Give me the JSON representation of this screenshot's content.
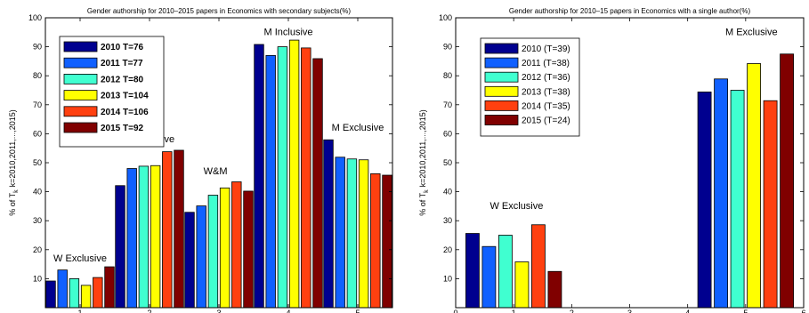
{
  "colors": [
    "#00008f",
    "#1060ff",
    "#40ffd0",
    "#ffff00",
    "#ff4010",
    "#800000"
  ],
  "chart_data": [
    {
      "type": "bar",
      "title": "Gender authorship for 2010–2015 papers in Economics with secondary subjects(%)",
      "ylabel": "% of T",
      "ylabel_sub": "k",
      "ylabel_rest": "k=2010,2011,...,2015)",
      "xlim": [
        0.5,
        5.5
      ],
      "ylim": [
        0,
        100
      ],
      "xticks": [
        1,
        2,
        3,
        4,
        5
      ],
      "yticks": [
        10,
        20,
        30,
        40,
        50,
        60,
        70,
        80,
        90,
        100
      ],
      "legend_bold": true,
      "legend_position": "top-left",
      "categories": [
        1,
        2,
        3,
        4,
        5
      ],
      "series": [
        {
          "name": "2010 T=76",
          "values": [
            9.2,
            42.1,
            32.9,
            90.8,
            57.9
          ]
        },
        {
          "name": "2011 T=77",
          "values": [
            13.0,
            48.0,
            35.1,
            87.0,
            51.9
          ]
        },
        {
          "name": "2012 T=80",
          "values": [
            10.0,
            48.8,
            38.8,
            90.0,
            51.3
          ]
        },
        {
          "name": "2013 T=104",
          "values": [
            7.7,
            49.0,
            41.3,
            92.3,
            51.0
          ]
        },
        {
          "name": "2014 T=106",
          "values": [
            10.4,
            53.8,
            43.4,
            89.6,
            46.2
          ]
        },
        {
          "name": "2015 T=92",
          "values": [
            14.1,
            54.3,
            40.2,
            85.9,
            45.7
          ]
        }
      ],
      "annotations": [
        {
          "text": "W Exclusive",
          "x": 1,
          "y": 16
        },
        {
          "text": "W Inclusive",
          "x": 2,
          "y": 57
        },
        {
          "text": "W&M",
          "x": 2.95,
          "y": 46
        },
        {
          "text": "M Inclusive",
          "x": 4,
          "y": 94
        },
        {
          "text": "M Exclusive",
          "x": 5,
          "y": 61
        }
      ]
    },
    {
      "type": "bar",
      "title": "Gender authorship for 2010–15 papers in Economics with a single author(%)",
      "ylabel": "% of T",
      "ylabel_sub": "k",
      "ylabel_rest": "k=2010,2011,...,2015)",
      "xlim": [
        0,
        6
      ],
      "ylim": [
        0,
        100
      ],
      "xticks": [
        0,
        1,
        2,
        3,
        4,
        5,
        6
      ],
      "yticks": [
        10,
        20,
        30,
        40,
        50,
        60,
        70,
        80,
        90,
        100
      ],
      "legend_bold": false,
      "legend_position": "top-left",
      "categories": [
        1,
        5
      ],
      "series": [
        {
          "name": "2010 (T=39)",
          "values": [
            25.6,
            74.4
          ]
        },
        {
          "name": "2011 (T=38)",
          "values": [
            21.1,
            78.9
          ]
        },
        {
          "name": "2012 (T=36)",
          "values": [
            25.0,
            75.0
          ]
        },
        {
          "name": "2013 (T=38)",
          "values": [
            15.8,
            84.2
          ]
        },
        {
          "name": "2014 (T=35)",
          "values": [
            28.6,
            71.4
          ]
        },
        {
          "name": "2015 (T=24)",
          "values": [
            12.5,
            87.5
          ]
        }
      ],
      "annotations": [
        {
          "text": "W Exclusive",
          "x": 1.05,
          "y": 34
        },
        {
          "text": "M Exclusive",
          "x": 5.1,
          "y": 94
        }
      ]
    }
  ]
}
